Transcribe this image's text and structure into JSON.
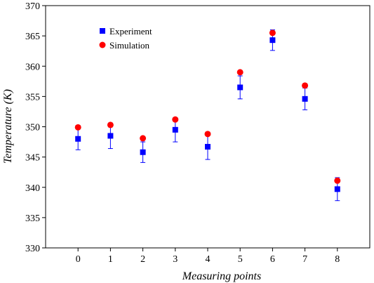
{
  "chart_data": {
    "type": "scatter",
    "xlabel": "Measuring points",
    "ylabel": "Temperature (K)",
    "xlim": [
      -1,
      9
    ],
    "ylim": [
      330,
      370
    ],
    "x_ticks": [
      0,
      1,
      2,
      3,
      4,
      5,
      6,
      7,
      8
    ],
    "y_ticks": [
      330,
      335,
      340,
      345,
      350,
      355,
      360,
      365,
      370
    ],
    "grid": false,
    "legend_position": "top-left",
    "series": [
      {
        "name": "Experiment",
        "marker": "square",
        "color": "#0000ff",
        "x": [
          0,
          1,
          2,
          3,
          4,
          5,
          6,
          7,
          8
        ],
        "y": [
          348.0,
          348.5,
          345.8,
          349.5,
          346.7,
          356.5,
          364.3,
          354.6,
          339.7
        ],
        "error": [
          1.8,
          2.1,
          1.7,
          2.0,
          2.1,
          1.9,
          1.7,
          1.8,
          1.9
        ]
      },
      {
        "name": "Simulation",
        "marker": "circle",
        "color": "#ff0000",
        "x": [
          0,
          1,
          2,
          3,
          4,
          5,
          6,
          7,
          8
        ],
        "y": [
          349.9,
          350.3,
          348.1,
          351.2,
          348.8,
          359.0,
          365.5,
          356.8,
          341.1
        ]
      }
    ]
  }
}
